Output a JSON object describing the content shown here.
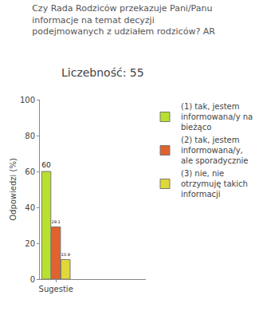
{
  "chart_data": {
    "type": "bar",
    "title": "Czy Rada Rodziców przekazuje Pani/Panu informacje na temat decyzji podejmowanych z udziałem rodziców? AR",
    "subtitle": "Liczebność: 55",
    "y_label": "Odpowiedzi (%)",
    "categories": [
      "Sugestie"
    ],
    "series": [
      {
        "name": "(1) tak, jestem informowana/y na bieżąco",
        "color": "#b8e02e",
        "values": [
          60
        ]
      },
      {
        "name": "(2) tak, jestem informowana/y, ale sporadycznie",
        "color": "#e0622e",
        "values": [
          29.1
        ]
      },
      {
        "name": "(3) nie, nie otrzymuję takich informacji",
        "color": "#e0d838",
        "values": [
          10.9
        ]
      }
    ],
    "ylim": [
      0,
      100
    ],
    "yticks": [
      0,
      20,
      40,
      60,
      80,
      100
    ],
    "grid": false,
    "legend": "right",
    "data_labels": true
  }
}
